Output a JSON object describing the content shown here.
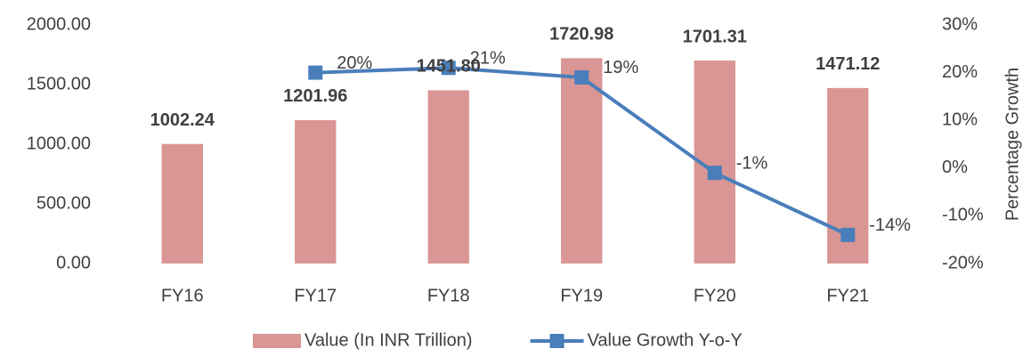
{
  "chart_data": {
    "type": "bar",
    "categories": [
      "FY16",
      "FY17",
      "FY18",
      "FY19",
      "FY20",
      "FY21"
    ],
    "series": [
      {
        "name": "Value (In INR Trillion)",
        "type": "bar",
        "color": "#d99694",
        "values": [
          1002.24,
          1201.96,
          1451.8,
          1720.98,
          1701.31,
          1471.12
        ],
        "value_labels": [
          "1002.24",
          "1201.96",
          "1451.80",
          "1720.98",
          "1701.31",
          "1471.12"
        ]
      },
      {
        "name": "Value Growth Y-o-Y",
        "type": "line",
        "color": "#4a7ebb",
        "axis": "y2",
        "values": [
          null,
          20,
          21,
          19,
          -1,
          -14
        ],
        "value_labels": [
          null,
          "20%",
          "21%",
          "19%",
          "-1%",
          "-14%"
        ]
      }
    ],
    "ylim": [
      0,
      2000
    ],
    "yticks": [
      {
        "value": 0,
        "label": "0.00"
      },
      {
        "value": 500,
        "label": "500.00"
      },
      {
        "value": 1000,
        "label": "1000.00"
      },
      {
        "value": 1500,
        "label": "1500.00"
      },
      {
        "value": 2000,
        "label": "2000.00"
      }
    ],
    "y2lim": [
      -20,
      30
    ],
    "y2ticks": [
      {
        "value": -20,
        "label": "-20%"
      },
      {
        "value": -10,
        "label": "-10%"
      },
      {
        "value": 0,
        "label": "0%"
      },
      {
        "value": 10,
        "label": "10%"
      },
      {
        "value": 20,
        "label": "20%"
      },
      {
        "value": 30,
        "label": "30%"
      }
    ],
    "y2label": "Percentage Growth",
    "legend": "bottom"
  }
}
